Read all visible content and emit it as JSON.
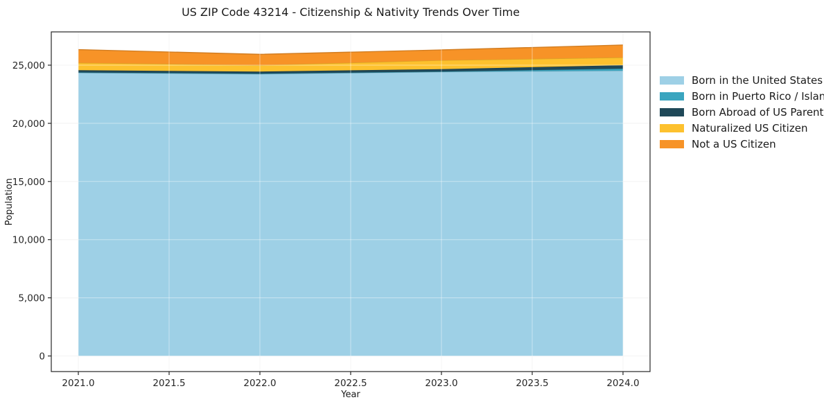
{
  "chart_data": {
    "type": "area",
    "stacked": true,
    "title": "US ZIP Code 43214 - Citizenship & Nativity Trends Over Time",
    "xlabel": "Year",
    "ylabel": "Population",
    "x": [
      2021,
      2022,
      2023,
      2024
    ],
    "series": [
      {
        "name": "Born in the United States",
        "color": "#9ed0e6",
        "values": [
          24350,
          24240,
          24420,
          24520
        ]
      },
      {
        "name": "Born in Puerto Rico / Islands",
        "color": "#3aa5bf",
        "values": [
          25,
          30,
          30,
          180
        ]
      },
      {
        "name": "Born Abroad of US Parent(s)",
        "color": "#1f4858",
        "values": [
          190,
          180,
          210,
          300
        ]
      },
      {
        "name": "Naturalized US Citizen",
        "color": "#fdc12e",
        "values": [
          640,
          550,
          760,
          660
        ]
      },
      {
        "name": "Not a US Citizen",
        "color": "#f79327",
        "values": [
          1130,
          930,
          890,
          1070
        ]
      }
    ],
    "x_tick_values": [
      2021.0,
      2021.5,
      2022.0,
      2022.5,
      2023.0,
      2023.5,
      2024.0
    ],
    "x_tick_labels": [
      "2021.0",
      "2021.5",
      "2022.0",
      "2022.5",
      "2023.0",
      "2023.5",
      "2024.0"
    ],
    "y_tick_values": [
      0,
      5000,
      10000,
      15000,
      20000,
      25000
    ],
    "y_tick_labels": [
      "0",
      "5,000",
      "10,000",
      "15,000",
      "20,000",
      "25,000"
    ],
    "xlim": [
      2020.851,
      2024.149
    ],
    "ylim": [
      -1340,
      27860
    ],
    "grid": true,
    "legend_position": "right outside, top"
  }
}
